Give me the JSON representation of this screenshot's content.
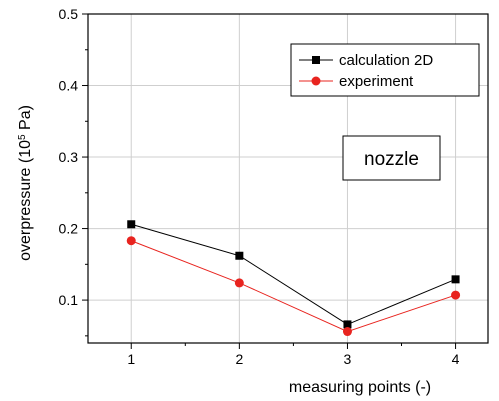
{
  "chart_data": {
    "type": "line",
    "xlabel": "measuring points (-)",
    "ylabel_prefix": "overpressure (10",
    "ylabel_exp": "5",
    "ylabel_suffix": " Pa)",
    "xlim": [
      0.6,
      4.3
    ],
    "ylim": [
      0.04,
      0.5
    ],
    "x": [
      1,
      2,
      3,
      4
    ],
    "x_tick_labels": [
      "1",
      "2",
      "3",
      "4"
    ],
    "y_ticks": [
      0.1,
      0.2,
      0.3,
      0.4,
      0.5
    ],
    "y_tick_labels": [
      "0.1",
      "0.2",
      "0.3",
      "0.4",
      "0.5"
    ],
    "grid": true,
    "legend_position": "top-right",
    "series": [
      {
        "name": "calculation 2D",
        "values": [
          0.206,
          0.162,
          0.066,
          0.129
        ],
        "color": "#000000",
        "marker": "square"
      },
      {
        "name": "experiment",
        "values": [
          0.183,
          0.124,
          0.056,
          0.107
        ],
        "color": "#e8241f",
        "marker": "circle"
      }
    ],
    "annotations": [
      {
        "text": "nozzle"
      }
    ]
  }
}
